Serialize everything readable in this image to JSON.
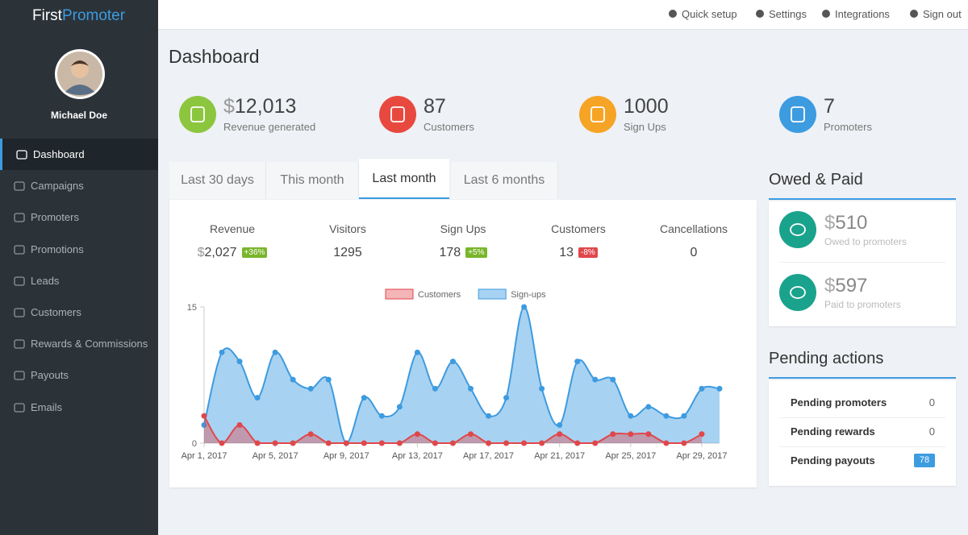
{
  "brand": {
    "first": "First",
    "second": "Promoter"
  },
  "topbar": [
    "Quick setup",
    "Settings",
    "Integrations",
    "Sign out"
  ],
  "user": {
    "name": "Michael Doe"
  },
  "nav": [
    "Dashboard",
    "Campaigns",
    "Promoters",
    "Promotions",
    "Leads",
    "Customers",
    "Rewards & Commissions",
    "Payouts",
    "Emails"
  ],
  "active_nav": 0,
  "page_title": "Dashboard",
  "stats": [
    {
      "currency": "$",
      "amount": "12,013",
      "label": "Revenue generated",
      "color": "#8cc63e"
    },
    {
      "amount": "87",
      "label": "Customers",
      "color": "#e8493f"
    },
    {
      "amount": "1000",
      "label": "Sign Ups",
      "color": "#f6a425"
    },
    {
      "amount": "7",
      "label": "Promoters",
      "color": "#3d9be0"
    }
  ],
  "tabs": [
    "Last 30 days",
    "This month",
    "Last month",
    "Last 6 months"
  ],
  "active_tab": 2,
  "metrics": [
    {
      "label": "Revenue",
      "currency": "$",
      "amount": "2,027",
      "badge": "+36%",
      "badge_color": "#79b62b"
    },
    {
      "label": "Visitors",
      "amount": "1295"
    },
    {
      "label": "Sign Ups",
      "amount": "178",
      "badge": "+5%",
      "badge_color": "#79b62b"
    },
    {
      "label": "Customers",
      "amount": "13",
      "badge": "-8%",
      "badge_color": "#e0474b"
    },
    {
      "label": "Cancellations",
      "amount": "0"
    }
  ],
  "chart_data": {
    "type": "area",
    "categories": [
      "Apr 1, 2017",
      null,
      null,
      null,
      "Apr 5, 2017",
      null,
      null,
      null,
      "Apr 9, 2017",
      null,
      null,
      null,
      "Apr 13, 2017",
      null,
      null,
      null,
      "Apr 17, 2017",
      null,
      null,
      null,
      "Apr 21, 2017",
      null,
      null,
      null,
      "Apr 25, 2017",
      null,
      null,
      null,
      "Apr 29, 2017",
      null
    ],
    "series": [
      {
        "name": "Customers",
        "color": "#e0474b",
        "fill": "rgba(224,71,75,0.4)",
        "values": [
          3,
          0,
          2,
          0,
          0,
          0,
          1,
          0,
          0,
          0,
          0,
          0,
          1,
          0,
          0,
          1,
          0,
          0,
          0,
          0,
          1,
          0,
          0,
          1,
          1,
          1,
          0,
          0,
          1,
          null
        ]
      },
      {
        "name": "Sign-ups",
        "color": "#3d9be0",
        "fill": "rgba(61,155,224,0.45)",
        "values": [
          2,
          10,
          9,
          5,
          10,
          7,
          6,
          7,
          0,
          5,
          3,
          4,
          10,
          6,
          9,
          6,
          3,
          5,
          15,
          6,
          2,
          9,
          7,
          7,
          3,
          4,
          3,
          3,
          6,
          6
        ]
      }
    ],
    "ylim": [
      0,
      15
    ],
    "yticks": [
      0,
      15
    ],
    "legend": "top"
  },
  "owed_paid": {
    "title": "Owed & Paid",
    "items": [
      {
        "currency": "$",
        "amount": "510",
        "label": "Owed to promoters"
      },
      {
        "currency": "$",
        "amount": "597",
        "label": "Paid to promoters"
      }
    ]
  },
  "pending": {
    "title": "Pending actions",
    "rows": [
      {
        "label": "Pending promoters",
        "count": 0
      },
      {
        "label": "Pending rewards",
        "count": 0
      },
      {
        "label": "Pending payouts",
        "count": 78,
        "highlight": true
      }
    ]
  }
}
